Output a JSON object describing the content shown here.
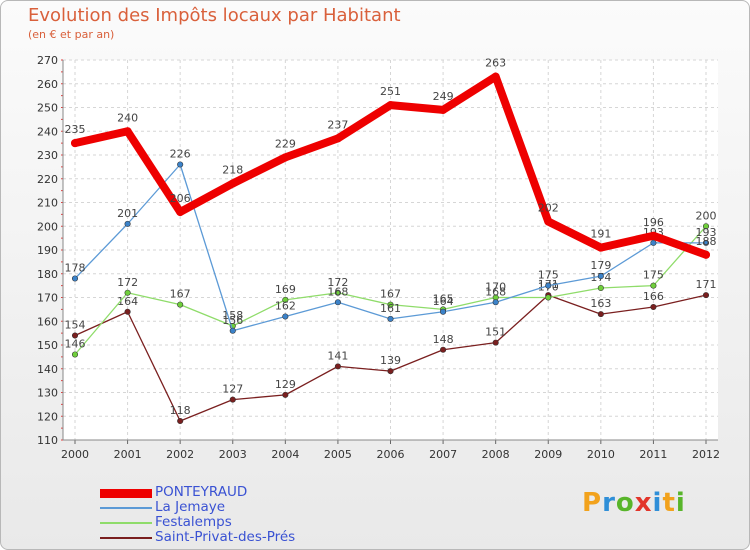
{
  "title": "Evolution des Impôts locaux par Habitant",
  "subtitle": "(en € et par an)",
  "brand": {
    "letters": [
      "P",
      "r",
      "o",
      "x",
      "i",
      "t",
      "i"
    ],
    "colors": [
      "#f2a21c",
      "#2f8fd8",
      "#58b52a",
      "#e2352a",
      "#2f8fd8",
      "#f2a21c",
      "#58b52a"
    ]
  },
  "chart_data": {
    "type": "line",
    "title": "Evolution des Impôts locaux par Habitant",
    "subtitle": "(en € et par an)",
    "x": [
      2000,
      2001,
      2002,
      2003,
      2004,
      2005,
      2006,
      2007,
      2008,
      2009,
      2010,
      2011,
      2012
    ],
    "ylim": [
      110,
      270
    ],
    "yticks": [
      110,
      120,
      130,
      140,
      150,
      160,
      170,
      180,
      190,
      200,
      210,
      220,
      230,
      240,
      250,
      260,
      270
    ],
    "grid": true,
    "series": [
      {
        "name": "Saint-Privat-des-Prés",
        "color": "#7a1f1f",
        "width": 1.3,
        "marker": 4.5,
        "values": [
          154,
          164,
          118,
          127,
          129,
          141,
          139,
          148,
          151,
          171,
          163,
          166,
          171
        ]
      },
      {
        "name": "Festalemps",
        "color": "#8fdc6a",
        "width": 1.3,
        "marker": 4.5,
        "markerColor": "#6fcf3b",
        "values": [
          146,
          172,
          167,
          158,
          169,
          172,
          167,
          165,
          170,
          170,
          174,
          175,
          200
        ]
      },
      {
        "name": "La Jemaye",
        "color": "#5c9ad6",
        "width": 1.3,
        "marker": 4.5,
        "markerColor": "#3b82c9",
        "values": [
          178,
          201,
          226,
          156,
          162,
          168,
          161,
          164,
          168,
          175,
          179,
          193,
          193
        ]
      },
      {
        "name": "PONTEYRAUD",
        "color": "#ee0000",
        "width": 8,
        "marker": 7,
        "labelsAbove": true,
        "values": [
          235,
          240,
          206,
          218,
          229,
          237,
          251,
          249,
          263,
          202,
          191,
          196,
          188
        ]
      }
    ],
    "legend": [
      {
        "name": "PONTEYRAUD",
        "color": "#ee0000",
        "thick": true
      },
      {
        "name": "La Jemaye",
        "color": "#5c9ad6"
      },
      {
        "name": "Festalemps",
        "color": "#8fdc6a"
      },
      {
        "name": "Saint-Privat-des-Prés",
        "color": "#7a1f1f"
      }
    ]
  }
}
